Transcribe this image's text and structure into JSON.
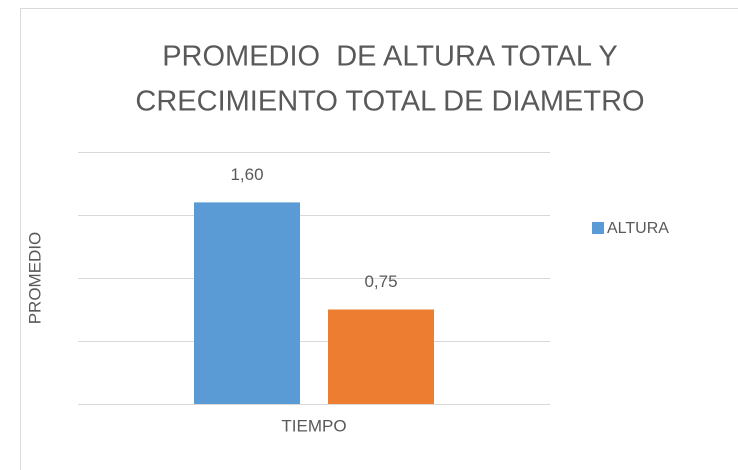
{
  "chart_data": {
    "type": "bar",
    "title": [
      "PROMEDIO  DE ALTURA TOTAL Y",
      "CRECIMIENTO TOTAL DE DIAMETRO"
    ],
    "xlabel": "TIEMPO",
    "ylabel": "PROMEDIO",
    "categories": [
      "TIEMPO"
    ],
    "series": [
      {
        "name": "ALTURA",
        "color": "#5b9bd5",
        "values": [
          1.6
        ],
        "value_labels": [
          "1,60"
        ]
      },
      {
        "color": "#ed7d31",
        "values": [
          0.75
        ],
        "value_labels": [
          "0,75"
        ]
      }
    ],
    "ylim": [
      0,
      2
    ],
    "yticks": [
      0,
      0.5,
      1,
      1.5,
      2
    ],
    "grid": true,
    "legend": "right"
  }
}
